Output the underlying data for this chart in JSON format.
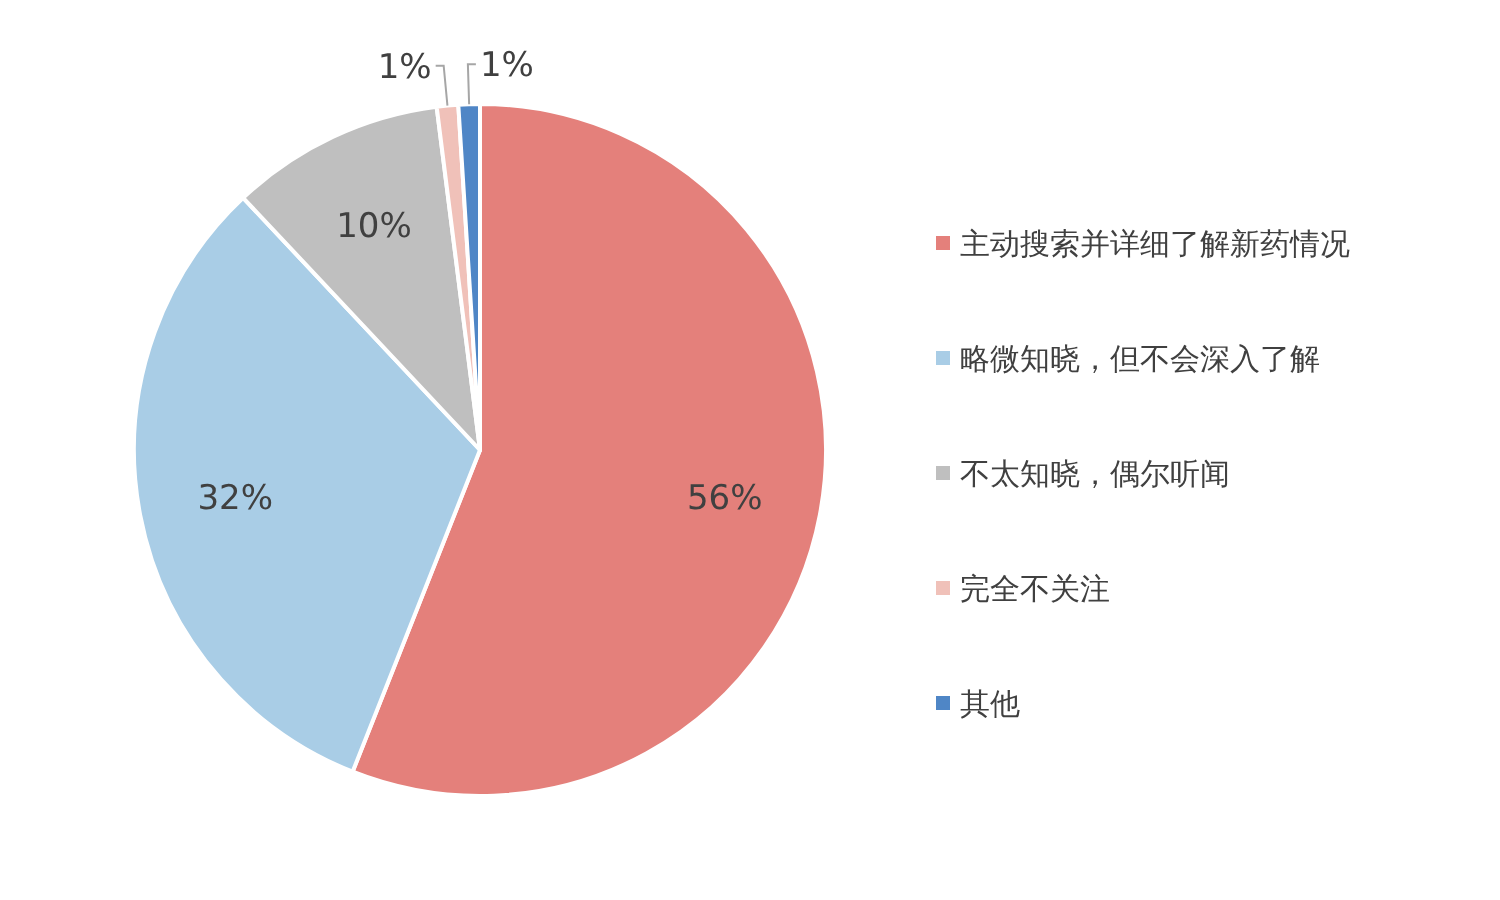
{
  "chart_data": {
    "type": "pie",
    "categories": [
      "主动搜索并详细了解新药情况",
      "略微知晓，但不会深入了解",
      "不太知晓，偶尔听闻",
      "完全不关注",
      "其他"
    ],
    "values": [
      56,
      32,
      10,
      1,
      1
    ],
    "value_labels": [
      "56%",
      "32%",
      "10%",
      "1%",
      "1%"
    ],
    "colors": [
      "#e4807b",
      "#a9cde6",
      "#bfbfbf",
      "#f0c1b9",
      "#4f86c6"
    ],
    "legend": "right"
  }
}
